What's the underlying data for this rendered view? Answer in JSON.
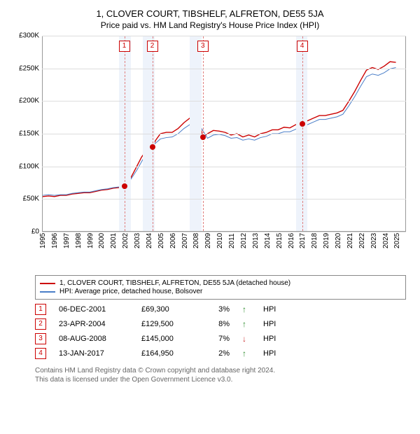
{
  "title": "1, CLOVER COURT, TIBSHELF, ALFRETON, DE55 5JA",
  "subtitle": "Price paid vs. HM Land Registry's House Price Index (HPI)",
  "chart": {
    "type": "line",
    "background_color": "#ffffff",
    "grid_color": "#dddddd",
    "axis_color": "#999999",
    "ylim": [
      0,
      300000
    ],
    "y_ticks": [
      0,
      50000,
      100000,
      150000,
      200000,
      250000,
      300000
    ],
    "y_labels": [
      "£0",
      "£50K",
      "£100K",
      "£150K",
      "£200K",
      "£250K",
      "£300K"
    ],
    "xlim": [
      1995,
      2025.8
    ],
    "x_ticks": [
      1995,
      1996,
      1997,
      1998,
      1999,
      2000,
      2001,
      2002,
      2003,
      2004,
      2005,
      2006,
      2007,
      2008,
      2009,
      2010,
      2011,
      2012,
      2013,
      2014,
      2015,
      2016,
      2017,
      2018,
      2019,
      2020,
      2021,
      2022,
      2023,
      2024,
      2025
    ],
    "shaded_bands": [
      {
        "from": 2001.5,
        "to": 2002.5,
        "color": "#eef3fb"
      },
      {
        "from": 2003.5,
        "to": 2004.5,
        "color": "#eef3fb"
      },
      {
        "from": 2007.5,
        "to": 2008.5,
        "color": "#eef3fb"
      },
      {
        "from": 2016.5,
        "to": 2017.5,
        "color": "#eef3fb"
      }
    ],
    "markers": [
      {
        "id": "1",
        "x": 2001.93,
        "y": 69300
      },
      {
        "id": "2",
        "x": 2004.31,
        "y": 129500
      },
      {
        "id": "3",
        "x": 2008.6,
        "y": 145000
      },
      {
        "id": "4",
        "x": 2017.04,
        "y": 164950
      }
    ],
    "marker_line_color": "#e08080",
    "marker_box_border": "#cc0000",
    "marker_box_text": "#cc0000",
    "series": [
      {
        "name": "1, CLOVER COURT, TIBSHELF, ALFRETON, DE55 5JA (detached house)",
        "color": "#cc0000",
        "width": 1.4,
        "data": [
          [
            1995,
            53000
          ],
          [
            1995.5,
            54000
          ],
          [
            1996,
            53000
          ],
          [
            1996.5,
            55000
          ],
          [
            1997,
            55000
          ],
          [
            1997.5,
            57000
          ],
          [
            1998,
            58000
          ],
          [
            1998.5,
            59000
          ],
          [
            1999,
            59000
          ],
          [
            1999.5,
            61000
          ],
          [
            2000,
            63000
          ],
          [
            2000.5,
            64000
          ],
          [
            2001,
            66000
          ],
          [
            2001.5,
            67000
          ],
          [
            2001.93,
            69300
          ],
          [
            2002.3,
            76000
          ],
          [
            2002.6,
            86000
          ],
          [
            2003,
            100000
          ],
          [
            2003.4,
            114000
          ],
          [
            2003.8,
            124000
          ],
          [
            2004.31,
            129500
          ],
          [
            2004.6,
            140000
          ],
          [
            2005,
            150000
          ],
          [
            2005.5,
            152000
          ],
          [
            2006,
            152000
          ],
          [
            2006.5,
            158000
          ],
          [
            2007,
            167000
          ],
          [
            2007.5,
            174000
          ],
          [
            2008,
            176000
          ],
          [
            2008.3,
            172000
          ],
          [
            2008.6,
            145000
          ],
          [
            2009,
            150000
          ],
          [
            2009.5,
            155000
          ],
          [
            2010,
            154000
          ],
          [
            2010.5,
            152000
          ],
          [
            2011,
            148000
          ],
          [
            2011.5,
            150000
          ],
          [
            2012,
            145000
          ],
          [
            2012.5,
            148000
          ],
          [
            2013,
            145000
          ],
          [
            2013.5,
            150000
          ],
          [
            2014,
            152000
          ],
          [
            2014.5,
            156000
          ],
          [
            2015,
            156000
          ],
          [
            2015.5,
            160000
          ],
          [
            2016,
            159000
          ],
          [
            2016.5,
            164000
          ],
          [
            2017.04,
            164950
          ],
          [
            2017.5,
            170000
          ],
          [
            2018,
            174000
          ],
          [
            2018.5,
            178000
          ],
          [
            2019,
            178000
          ],
          [
            2019.5,
            180000
          ],
          [
            2020,
            182000
          ],
          [
            2020.5,
            186000
          ],
          [
            2021,
            200000
          ],
          [
            2021.5,
            215000
          ],
          [
            2022,
            232000
          ],
          [
            2022.5,
            248000
          ],
          [
            2023,
            252000
          ],
          [
            2023.5,
            249000
          ],
          [
            2024,
            254000
          ],
          [
            2024.5,
            261000
          ],
          [
            2025,
            260000
          ]
        ]
      },
      {
        "name": "HPI: Average price, detached house, Bolsover",
        "color": "#4a7ec8",
        "width": 1.0,
        "data": [
          [
            1995,
            55000
          ],
          [
            1995.5,
            56000
          ],
          [
            1996,
            55000
          ],
          [
            1996.5,
            56000
          ],
          [
            1997,
            56000
          ],
          [
            1997.5,
            58000
          ],
          [
            1998,
            59000
          ],
          [
            1998.5,
            60000
          ],
          [
            1999,
            60000
          ],
          [
            1999.5,
            62000
          ],
          [
            2000,
            64000
          ],
          [
            2000.5,
            65000
          ],
          [
            2001,
            67000
          ],
          [
            2001.5,
            68000
          ],
          [
            2002,
            71000
          ],
          [
            2002.5,
            80000
          ],
          [
            2003,
            94000
          ],
          [
            2003.5,
            110000
          ],
          [
            2004,
            122000
          ],
          [
            2004.5,
            134000
          ],
          [
            2005,
            142000
          ],
          [
            2005.5,
            144000
          ],
          [
            2006,
            145000
          ],
          [
            2006.5,
            150000
          ],
          [
            2007,
            158000
          ],
          [
            2007.5,
            164000
          ],
          [
            2008,
            165000
          ],
          [
            2008.5,
            158000
          ],
          [
            2009,
            143000
          ],
          [
            2009.5,
            148000
          ],
          [
            2010,
            149000
          ],
          [
            2010.5,
            147000
          ],
          [
            2011,
            143000
          ],
          [
            2011.5,
            144000
          ],
          [
            2012,
            140000
          ],
          [
            2012.5,
            142000
          ],
          [
            2013,
            140000
          ],
          [
            2013.5,
            144000
          ],
          [
            2014,
            146000
          ],
          [
            2014.5,
            150000
          ],
          [
            2015,
            150000
          ],
          [
            2015.5,
            153000
          ],
          [
            2016,
            153000
          ],
          [
            2016.5,
            157000
          ],
          [
            2017,
            160000
          ],
          [
            2017.5,
            164000
          ],
          [
            2018,
            168000
          ],
          [
            2018.5,
            172000
          ],
          [
            2019,
            172000
          ],
          [
            2019.5,
            174000
          ],
          [
            2020,
            176000
          ],
          [
            2020.5,
            180000
          ],
          [
            2021,
            193000
          ],
          [
            2021.5,
            207000
          ],
          [
            2022,
            223000
          ],
          [
            2022.5,
            238000
          ],
          [
            2023,
            242000
          ],
          [
            2023.5,
            240000
          ],
          [
            2024,
            244000
          ],
          [
            2024.5,
            250000
          ],
          [
            2025,
            252000
          ]
        ]
      }
    ]
  },
  "legend": [
    {
      "color": "#cc0000",
      "label": "1, CLOVER COURT, TIBSHELF, ALFRETON, DE55 5JA (detached house)"
    },
    {
      "color": "#4a7ec8",
      "label": "HPI: Average price, detached house, Bolsover"
    }
  ],
  "events": [
    {
      "id": "1",
      "date": "06-DEC-2001",
      "price": "£69,300",
      "pct": "3%",
      "arrow": "↑",
      "arrow_color": "#2a8a2a",
      "suffix": "HPI"
    },
    {
      "id": "2",
      "date": "23-APR-2004",
      "price": "£129,500",
      "pct": "8%",
      "arrow": "↑",
      "arrow_color": "#2a8a2a",
      "suffix": "HPI"
    },
    {
      "id": "3",
      "date": "08-AUG-2008",
      "price": "£145,000",
      "pct": "7%",
      "arrow": "↓",
      "arrow_color": "#cc3333",
      "suffix": "HPI"
    },
    {
      "id": "4",
      "date": "13-JAN-2017",
      "price": "£164,950",
      "pct": "2%",
      "arrow": "↑",
      "arrow_color": "#2a8a2a",
      "suffix": "HPI"
    }
  ],
  "footer": {
    "line1": "Contains HM Land Registry data © Crown copyright and database right 2024.",
    "line2": "This data is licensed under the Open Government Licence v3.0."
  }
}
